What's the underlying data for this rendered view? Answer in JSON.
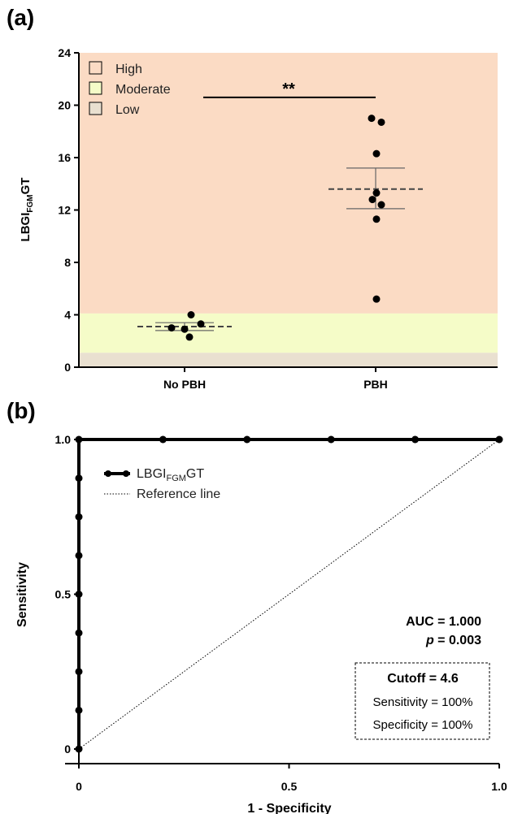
{
  "panels": {
    "a": "(a)",
    "b": "(b)"
  },
  "chart_data": [
    {
      "type": "scatter",
      "panel": "(a)",
      "categories": [
        "No PBH",
        "PBH"
      ],
      "ylabel_main": "LBGI",
      "ylabel_sub": "FGM",
      "ylabel_tail": "GT",
      "ylim": [
        0,
        24
      ],
      "yticks": [
        0,
        4,
        8,
        12,
        16,
        20,
        24
      ],
      "risk_bands": [
        {
          "name": "High",
          "from": 4.1,
          "to": 24,
          "color": "#fbdbc4"
        },
        {
          "name": "Moderate",
          "from": 1.1,
          "to": 4.1,
          "color": "#f5fcc8"
        },
        {
          "name": "Low",
          "from": 0,
          "to": 1.1,
          "color": "#e9e0d0"
        }
      ],
      "legend_placement": "top-left",
      "series": [
        {
          "category": "No PBH",
          "points": [
            4.0,
            3.3,
            3.0,
            2.9,
            2.3
          ],
          "mean": 3.1,
          "sem_low": 2.8,
          "sem_high": 3.4
        },
        {
          "category": "PBH",
          "points": [
            19.0,
            18.7,
            16.3,
            13.3,
            12.8,
            12.4,
            11.3,
            5.2
          ],
          "mean": 13.6,
          "sem_low": 12.1,
          "sem_high": 15.2
        }
      ],
      "significance": "**",
      "significance_y": 20.6
    },
    {
      "type": "line",
      "panel": "(b)",
      "xlabel": "1 - Specificity",
      "ylabel": "Sensitivity",
      "xlim": [
        0,
        1
      ],
      "ylim": [
        0,
        1
      ],
      "xticks": [
        "0",
        "0.5",
        "1.0"
      ],
      "yticks": [
        "0",
        "0.5",
        "1.0"
      ],
      "legend_placement": "top-left",
      "series": [
        {
          "name_main": "LBGI",
          "name_sub": "FGM",
          "name_tail": "GT",
          "x": [
            0,
            0,
            0,
            0,
            0,
            0,
            0,
            0,
            0,
            0.2,
            0.4,
            0.6,
            0.8,
            1.0
          ],
          "y": [
            0,
            0.125,
            0.25,
            0.375,
            0.5,
            0.625,
            0.75,
            0.875,
            1.0,
            1.0,
            1.0,
            1.0,
            1.0,
            1.0
          ]
        },
        {
          "name": "Reference line",
          "x": [
            0,
            1
          ],
          "y": [
            0,
            1
          ]
        }
      ],
      "annotations": {
        "auc": "AUC = 1.000",
        "p_italic": "p",
        "p_rest": " = 0.003",
        "cutoff": "Cutoff = 4.6",
        "sensitivity": "Sensitivity = 100%",
        "specificity": "Specificity = 100%"
      }
    }
  ]
}
